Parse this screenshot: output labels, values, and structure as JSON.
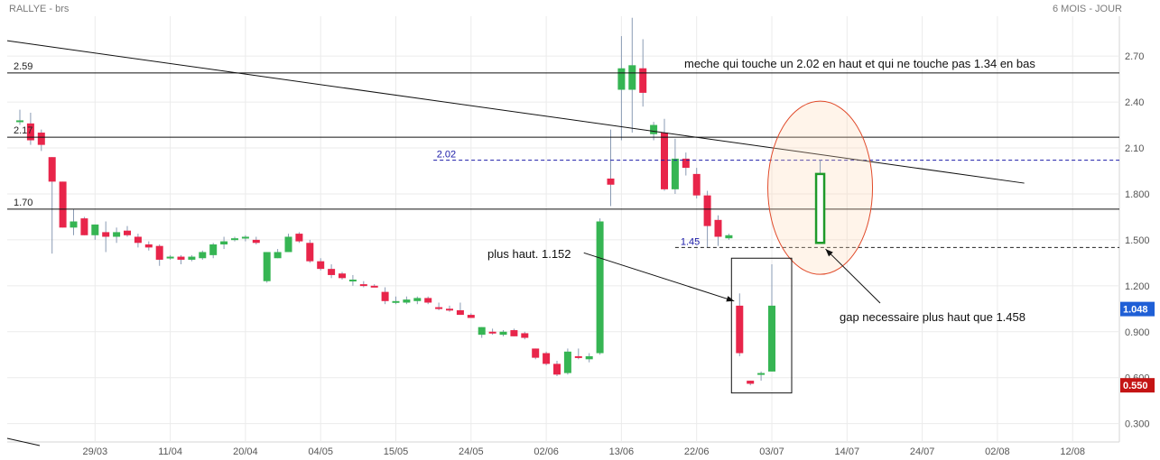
{
  "header": {
    "title": "RALLYE - brs",
    "period": "6 MOIS - JOUR"
  },
  "chart_data": {
    "type": "candlestick",
    "ylim": [
      0.18,
      2.96
    ],
    "y_ticks": [
      "0.300",
      "0.600",
      "0.900",
      "1.200",
      "1.500",
      "1.800",
      "2.10",
      "2.40",
      "2.70"
    ],
    "x_ticks": [
      {
        "label": "29/03",
        "i": 7
      },
      {
        "label": "11/04",
        "i": 14
      },
      {
        "label": "20/04",
        "i": 21
      },
      {
        "label": "04/05",
        "i": 28
      },
      {
        "label": "15/05",
        "i": 35
      },
      {
        "label": "24/05",
        "i": 42
      },
      {
        "label": "02/06",
        "i": 49
      },
      {
        "label": "13/06",
        "i": 56
      },
      {
        "label": "22/06",
        "i": 63
      },
      {
        "label": "03/07",
        "i": 70
      },
      {
        "label": "14/07",
        "i": 77
      },
      {
        "label": "24/07",
        "i": 84
      },
      {
        "label": "02/08",
        "i": 91
      },
      {
        "label": "12/08",
        "i": 98
      }
    ],
    "candles": [
      {
        "o": 2.28,
        "h": 2.35,
        "l": 2.25,
        "c": 2.28
      },
      {
        "o": 2.26,
        "h": 2.33,
        "l": 2.12,
        "c": 2.15
      },
      {
        "o": 2.2,
        "h": 2.22,
        "l": 2.08,
        "c": 2.12
      },
      {
        "o": 2.04,
        "h": 2.04,
        "l": 1.41,
        "c": 1.88
      },
      {
        "o": 1.88,
        "h": 1.88,
        "l": 1.58,
        "c": 1.58
      },
      {
        "o": 1.58,
        "h": 1.7,
        "l": 1.53,
        "c": 1.62
      },
      {
        "o": 1.64,
        "h": 1.65,
        "l": 1.53,
        "c": 1.53
      },
      {
        "o": 1.53,
        "h": 1.6,
        "l": 1.5,
        "c": 1.6
      },
      {
        "o": 1.55,
        "h": 1.62,
        "l": 1.42,
        "c": 1.52
      },
      {
        "o": 1.52,
        "h": 1.58,
        "l": 1.48,
        "c": 1.55
      },
      {
        "o": 1.56,
        "h": 1.59,
        "l": 1.52,
        "c": 1.53
      },
      {
        "o": 1.52,
        "h": 1.54,
        "l": 1.45,
        "c": 1.48
      },
      {
        "o": 1.47,
        "h": 1.49,
        "l": 1.43,
        "c": 1.45
      },
      {
        "o": 1.46,
        "h": 1.47,
        "l": 1.33,
        "c": 1.37
      },
      {
        "o": 1.38,
        "h": 1.4,
        "l": 1.37,
        "c": 1.39
      },
      {
        "o": 1.39,
        "h": 1.4,
        "l": 1.34,
        "c": 1.37
      },
      {
        "o": 1.37,
        "h": 1.4,
        "l": 1.36,
        "c": 1.39
      },
      {
        "o": 1.38,
        "h": 1.43,
        "l": 1.37,
        "c": 1.42
      },
      {
        "o": 1.4,
        "h": 1.48,
        "l": 1.38,
        "c": 1.47
      },
      {
        "o": 1.47,
        "h": 1.52,
        "l": 1.44,
        "c": 1.49
      },
      {
        "o": 1.5,
        "h": 1.52,
        "l": 1.49,
        "c": 1.51
      },
      {
        "o": 1.51,
        "h": 1.53,
        "l": 1.49,
        "c": 1.52
      },
      {
        "o": 1.5,
        "h": 1.52,
        "l": 1.47,
        "c": 1.48
      },
      {
        "o": 1.23,
        "h": 1.42,
        "l": 1.22,
        "c": 1.42
      },
      {
        "o": 1.38,
        "h": 1.44,
        "l": 1.38,
        "c": 1.42
      },
      {
        "o": 1.42,
        "h": 1.54,
        "l": 1.42,
        "c": 1.52
      },
      {
        "o": 1.54,
        "h": 1.55,
        "l": 1.48,
        "c": 1.49
      },
      {
        "o": 1.48,
        "h": 1.5,
        "l": 1.35,
        "c": 1.36
      },
      {
        "o": 1.36,
        "h": 1.38,
        "l": 1.3,
        "c": 1.31
      },
      {
        "o": 1.31,
        "h": 1.34,
        "l": 1.25,
        "c": 1.27
      },
      {
        "o": 1.28,
        "h": 1.29,
        "l": 1.24,
        "c": 1.25
      },
      {
        "o": 1.23,
        "h": 1.27,
        "l": 1.2,
        "c": 1.24
      },
      {
        "o": 1.21,
        "h": 1.23,
        "l": 1.19,
        "c": 1.2
      },
      {
        "o": 1.2,
        "h": 1.21,
        "l": 1.19,
        "c": 1.19
      },
      {
        "o": 1.16,
        "h": 1.19,
        "l": 1.08,
        "c": 1.1
      },
      {
        "o": 1.1,
        "h": 1.13,
        "l": 1.08,
        "c": 1.1
      },
      {
        "o": 1.09,
        "h": 1.13,
        "l": 1.08,
        "c": 1.11
      },
      {
        "o": 1.1,
        "h": 1.13,
        "l": 1.08,
        "c": 1.12
      },
      {
        "o": 1.12,
        "h": 1.13,
        "l": 1.08,
        "c": 1.09
      },
      {
        "o": 1.06,
        "h": 1.09,
        "l": 1.04,
        "c": 1.05
      },
      {
        "o": 1.05,
        "h": 1.07,
        "l": 1.03,
        "c": 1.04
      },
      {
        "o": 1.04,
        "h": 1.09,
        "l": 1.01,
        "c": 1.01
      },
      {
        "o": 1.01,
        "h": 1.02,
        "l": 0.99,
        "c": 0.99
      },
      {
        "o": 0.88,
        "h": 0.93,
        "l": 0.86,
        "c": 0.93
      },
      {
        "o": 0.9,
        "h": 0.92,
        "l": 0.88,
        "c": 0.89
      },
      {
        "o": 0.88,
        "h": 0.91,
        "l": 0.87,
        "c": 0.9
      },
      {
        "o": 0.91,
        "h": 0.92,
        "l": 0.87,
        "c": 0.87
      },
      {
        "o": 0.89,
        "h": 0.9,
        "l": 0.85,
        "c": 0.86
      },
      {
        "o": 0.79,
        "h": 0.79,
        "l": 0.72,
        "c": 0.73
      },
      {
        "o": 0.76,
        "h": 0.77,
        "l": 0.68,
        "c": 0.69
      },
      {
        "o": 0.69,
        "h": 0.71,
        "l": 0.61,
        "c": 0.62
      },
      {
        "o": 0.63,
        "h": 0.79,
        "l": 0.62,
        "c": 0.77
      },
      {
        "o": 0.74,
        "h": 0.79,
        "l": 0.72,
        "c": 0.73
      },
      {
        "o": 0.72,
        "h": 0.76,
        "l": 0.7,
        "c": 0.74
      },
      {
        "o": 0.76,
        "h": 1.64,
        "l": 0.75,
        "c": 1.62
      },
      {
        "o": 1.9,
        "h": 2.22,
        "l": 1.72,
        "c": 1.86
      },
      {
        "o": 2.48,
        "h": 2.83,
        "l": 2.15,
        "c": 2.62
      },
      {
        "o": 2.48,
        "h": 2.95,
        "l": 2.2,
        "c": 2.64
      },
      {
        "o": 2.62,
        "h": 2.81,
        "l": 2.37,
        "c": 2.46
      },
      {
        "o": 2.19,
        "h": 2.27,
        "l": 2.15,
        "c": 2.25
      },
      {
        "o": 2.2,
        "h": 2.29,
        "l": 1.82,
        "c": 1.83
      },
      {
        "o": 1.83,
        "h": 2.16,
        "l": 1.8,
        "c": 2.03
      },
      {
        "o": 2.03,
        "h": 2.07,
        "l": 1.92,
        "c": 1.97
      },
      {
        "o": 1.93,
        "h": 1.97,
        "l": 1.77,
        "c": 1.79
      },
      {
        "o": 1.79,
        "h": 1.82,
        "l": 1.45,
        "c": 1.59
      },
      {
        "o": 1.63,
        "h": 1.66,
        "l": 1.46,
        "c": 1.52
      },
      {
        "o": 1.51,
        "h": 1.54,
        "l": 1.5,
        "c": 1.53
      },
      {
        "o": 1.07,
        "h": 1.15,
        "l": 0.74,
        "c": 0.76
      },
      {
        "o": 0.58,
        "h": 0.58,
        "l": 0.55,
        "c": 0.56
      },
      {
        "o": 0.63,
        "h": 0.64,
        "l": 0.58,
        "c": 0.63
      },
      {
        "o": 0.64,
        "h": 1.34,
        "l": 0.64,
        "c": 1.07
      }
    ],
    "hlines": [
      {
        "label": "2.59",
        "y": 2.59
      },
      {
        "label": "2.17",
        "y": 2.17
      },
      {
        "label": "1.70",
        "y": 1.7
      }
    ],
    "dashed_lines": [
      {
        "label": "2.02",
        "y": 2.02
      },
      {
        "label": "1.45",
        "y": 1.45
      }
    ],
    "trendline": [
      {
        "i": 0,
        "y": 2.8
      },
      {
        "i": 93.5,
        "y": 1.87
      }
    ],
    "hypothetical_candle": {
      "i": 74.5,
      "o": 1.48,
      "h": 2.02,
      "l": 1.48,
      "c": 1.93
    },
    "annotations": [
      "meche qui touche un 2.02 en haut et qui ne touche pas 1.34 en bas",
      "plus haut. 1.152",
      "gap necessaire plus haut que 1.458"
    ],
    "price_tags": [
      {
        "label": "1.048",
        "y": 1.048,
        "color": "#1f5fd6"
      },
      {
        "label": "0.550",
        "y": 0.55,
        "color": "#c41414"
      }
    ]
  }
}
